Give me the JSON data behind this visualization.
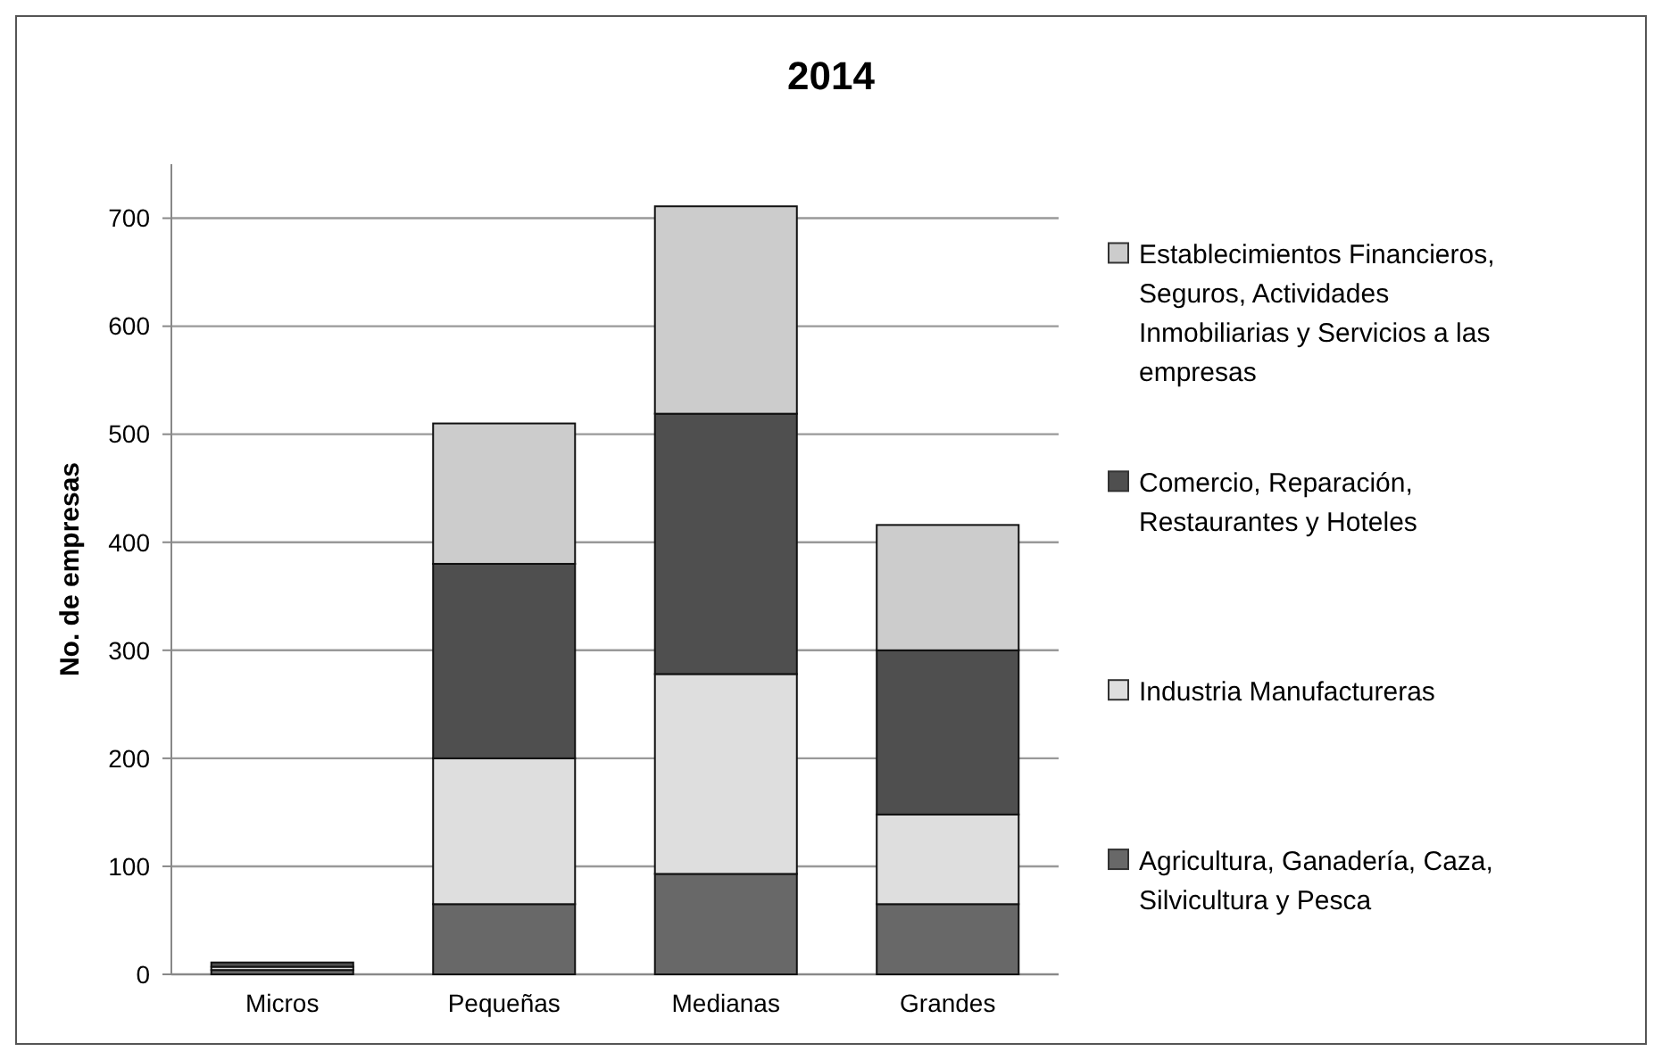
{
  "chart_data": {
    "type": "bar",
    "title": "2014",
    "ylabel": "No. de empresas",
    "categories": [
      "Micros",
      "Pequeñas",
      "Medianas",
      "Grandes"
    ],
    "stacked": true,
    "series": [
      {
        "name": "Agricultura, Ganadería, Caza, Silvicultura y Pesca",
        "color": "#686868",
        "values": [
          4,
          65,
          93,
          65
        ]
      },
      {
        "name": "Industria  Manufactureras",
        "color": "#dedede",
        "values": [
          3,
          135,
          185,
          83
        ]
      },
      {
        "name": "Comercio, Reparación, Restaurantes y Hoteles",
        "color": "#4f4f4f",
        "values": [
          4,
          180,
          241,
          152
        ]
      },
      {
        "name": "Establecimientos Financieros, Seguros, Actividades Inmobiliarias y Servicios a las empresas",
        "color": "#cccccc",
        "values": [
          0,
          130,
          192,
          116
        ]
      }
    ],
    "ylim": [
      0,
      750
    ],
    "yticks": [
      0,
      100,
      200,
      300,
      400,
      500,
      600,
      700
    ],
    "grid": "y",
    "legend": "right"
  }
}
